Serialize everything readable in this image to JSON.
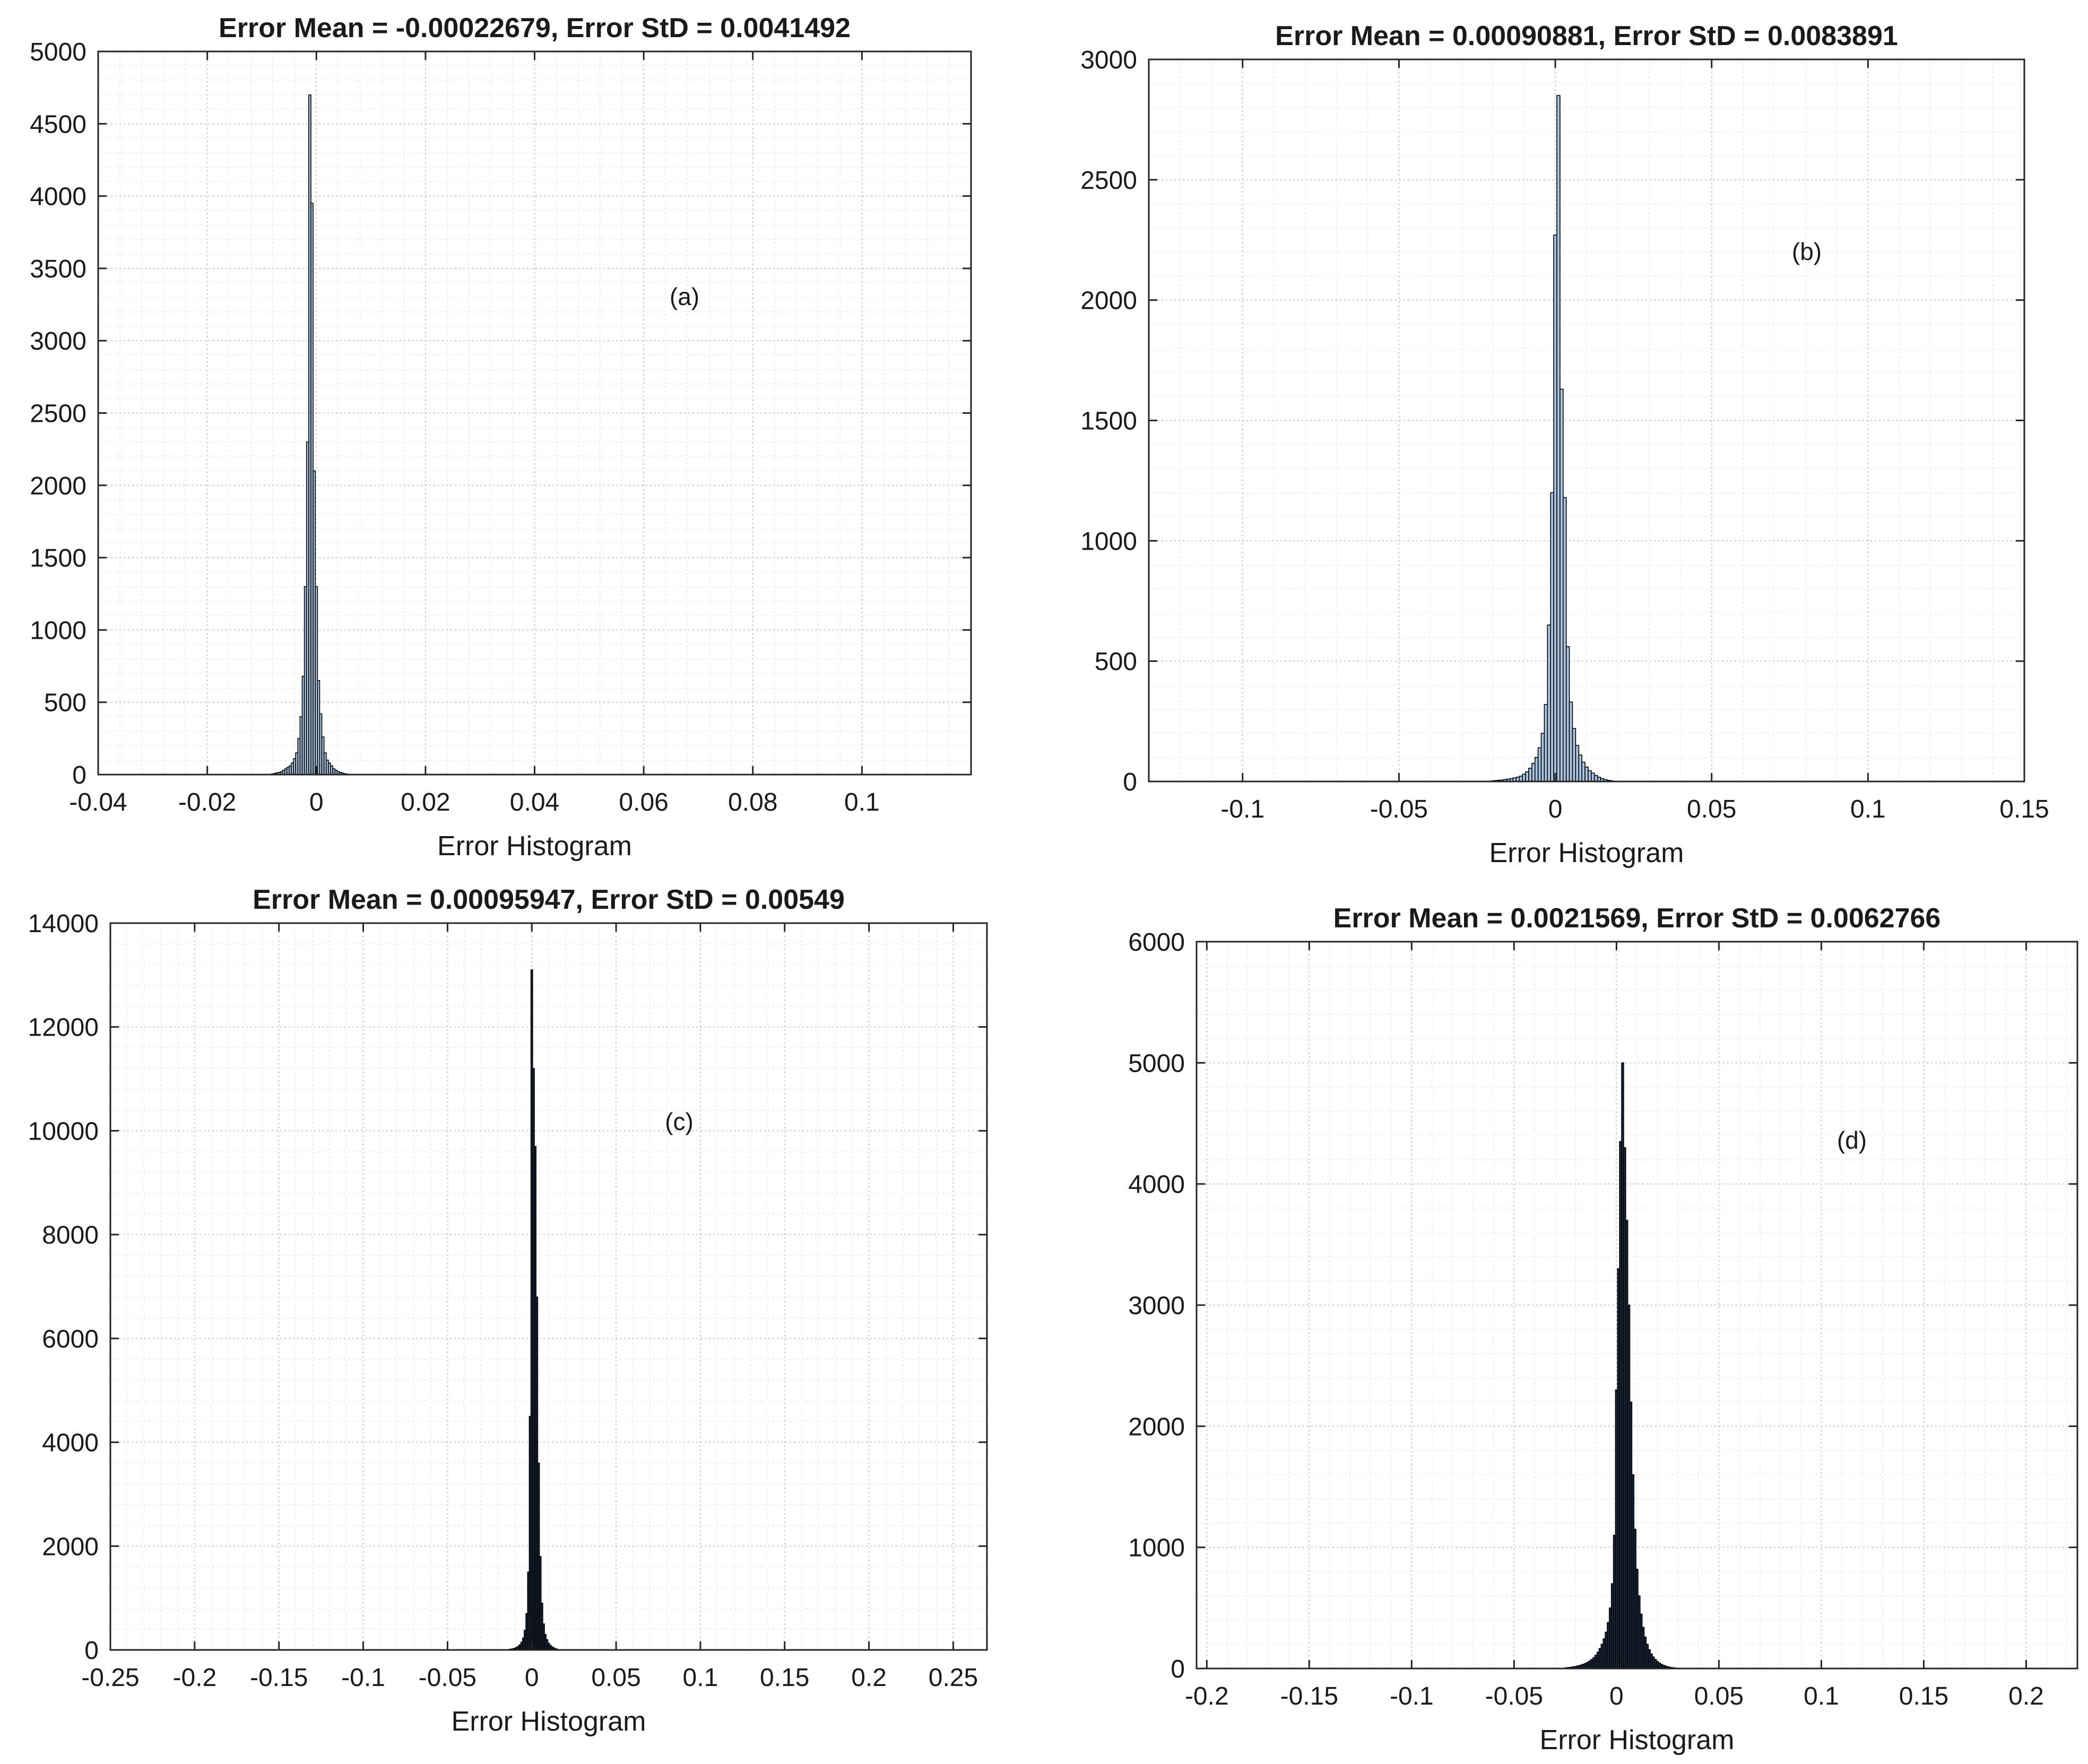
{
  "chart_data": [
    {
      "id": "a",
      "type": "bar",
      "title": "Error Mean = -0.00022679, Error StD = 0.0041492",
      "xlabel": "Error Histogram",
      "ylabel": "",
      "annotation": "(a)",
      "xlim": [
        -0.04,
        0.12
      ],
      "ylim": [
        0,
        5000
      ],
      "xticks": [
        -0.04,
        -0.02,
        0,
        0.02,
        0.04,
        0.06,
        0.08,
        0.1
      ],
      "xtick_labels": [
        "-0.04",
        "-0.02",
        "0",
        "0.02",
        "0.04",
        "0.06",
        "0.08",
        "0.1"
      ],
      "yticks": [
        0,
        500,
        1000,
        1500,
        2000,
        2500,
        3000,
        3500,
        4000,
        4500,
        5000
      ],
      "ytick_labels": [
        "0",
        "500",
        "1000",
        "1500",
        "2000",
        "2500",
        "3000",
        "3500",
        "4000",
        "4500",
        "5000"
      ],
      "grid": true,
      "bar_color": "#a9c4e0",
      "bar_edge": "#000000",
      "bin_width": 0.0004,
      "x": [
        -0.008,
        -0.0076,
        -0.0072,
        -0.0068,
        -0.0064,
        -0.006,
        -0.0056,
        -0.0052,
        -0.0048,
        -0.0044,
        -0.004,
        -0.0036,
        -0.0032,
        -0.0028,
        -0.0024,
        -0.002,
        -0.0016,
        -0.0012,
        -0.0008,
        -0.0004,
        0.0,
        0.0004,
        0.0008,
        0.0012,
        0.0016,
        0.002,
        0.0024,
        0.0028,
        0.0032,
        0.0036,
        0.004,
        0.0044,
        0.0048,
        0.0052,
        0.0056,
        0.006
      ],
      "values": [
        5,
        8,
        12,
        15,
        20,
        30,
        40,
        50,
        60,
        80,
        110,
        150,
        250,
        400,
        680,
        1300,
        2300,
        4700,
        3950,
        2100,
        1300,
        650,
        420,
        260,
        150,
        100,
        80,
        60,
        40,
        30,
        20,
        15,
        10,
        6,
        4,
        2
      ]
    },
    {
      "id": "b",
      "type": "bar",
      "title": "Error Mean = 0.00090881, Error StD = 0.0083891",
      "xlabel": "Error Histogram",
      "ylabel": "",
      "annotation": "(b)",
      "xlim": [
        -0.13,
        0.15
      ],
      "ylim": [
        0,
        3000
      ],
      "xticks": [
        -0.1,
        -0.05,
        0,
        0.05,
        0.1,
        0.15
      ],
      "xtick_labels": [
        "-0.1",
        "-0.05",
        "0",
        "0.05",
        "0.1",
        "0.15"
      ],
      "yticks": [
        0,
        500,
        1000,
        1500,
        2000,
        2500,
        3000
      ],
      "ytick_labels": [
        "0",
        "500",
        "1000",
        "1500",
        "2000",
        "2500",
        "3000"
      ],
      "grid": true,
      "bar_color": "#a9c4e0",
      "bar_edge": "#000000",
      "bin_width": 0.001,
      "x": [
        -0.02,
        -0.019,
        -0.018,
        -0.017,
        -0.016,
        -0.015,
        -0.014,
        -0.013,
        -0.012,
        -0.011,
        -0.01,
        -0.009,
        -0.008,
        -0.007,
        -0.006,
        -0.005,
        -0.004,
        -0.003,
        -0.002,
        -0.001,
        0.0,
        0.001,
        0.002,
        0.003,
        0.004,
        0.005,
        0.006,
        0.007,
        0.008,
        0.009,
        0.01,
        0.011,
        0.012,
        0.013,
        0.014,
        0.015,
        0.016,
        0.017,
        0.018
      ],
      "values": [
        3,
        4,
        5,
        6,
        8,
        10,
        12,
        15,
        18,
        22,
        30,
        40,
        55,
        75,
        100,
        140,
        200,
        320,
        650,
        1200,
        2270,
        2850,
        1630,
        1180,
        560,
        330,
        220,
        150,
        110,
        80,
        60,
        45,
        35,
        25,
        18,
        12,
        8,
        5,
        3
      ]
    },
    {
      "id": "c",
      "type": "bar",
      "title": "Error Mean = 0.00095947, Error StD = 0.00549",
      "xlabel": "Error Histogram",
      "ylabel": "",
      "annotation": "(c)",
      "xlim": [
        -0.25,
        0.27
      ],
      "ylim": [
        0,
        14000
      ],
      "xticks": [
        -0.25,
        -0.2,
        -0.15,
        -0.1,
        -0.05,
        0,
        0.05,
        0.1,
        0.15,
        0.2,
        0.25
      ],
      "xtick_labels": [
        "-0.25",
        "-0.2",
        "-0.15",
        "-0.1",
        "-0.05",
        "0",
        "0.05",
        "0.1",
        "0.15",
        "0.2",
        "0.25"
      ],
      "yticks": [
        0,
        2000,
        4000,
        6000,
        8000,
        10000,
        12000,
        14000
      ],
      "ytick_labels": [
        "0",
        "2000",
        "4000",
        "6000",
        "8000",
        "10000",
        "12000",
        "14000"
      ],
      "grid": true,
      "bar_color": "#1a2a40",
      "bar_edge": "#000000",
      "bin_width": 0.001,
      "x": [
        -0.015,
        -0.014,
        -0.013,
        -0.012,
        -0.011,
        -0.01,
        -0.009,
        -0.008,
        -0.007,
        -0.006,
        -0.005,
        -0.004,
        -0.003,
        -0.002,
        -0.001,
        0.0,
        0.001,
        0.002,
        0.003,
        0.004,
        0.005,
        0.006,
        0.007,
        0.008,
        0.009,
        0.01,
        0.011,
        0.012,
        0.013,
        0.014,
        0.015
      ],
      "values": [
        5,
        8,
        12,
        18,
        25,
        35,
        50,
        70,
        100,
        150,
        230,
        380,
        700,
        1500,
        4500,
        13100,
        11200,
        9700,
        6800,
        3600,
        1800,
        900,
        500,
        300,
        200,
        130,
        90,
        60,
        40,
        25,
        15
      ]
    },
    {
      "id": "d",
      "type": "bar",
      "title": "Error Mean = 0.0021569, Error StD = 0.0062766",
      "xlabel": "Error Histogram",
      "ylabel": "",
      "annotation": "(d)",
      "xlim": [
        -0.205,
        0.225
      ],
      "ylim": [
        0,
        6000
      ],
      "xticks": [
        -0.2,
        -0.15,
        -0.1,
        -0.05,
        0,
        0.05,
        0.1,
        0.15,
        0.2
      ],
      "xtick_labels": [
        "-0.2",
        "-0.15",
        "-0.1",
        "-0.05",
        "0",
        "0.05",
        "0.1",
        "0.15",
        "0.2"
      ],
      "yticks": [
        0,
        1000,
        2000,
        3000,
        4000,
        5000,
        6000
      ],
      "ytick_labels": [
        "0",
        "1000",
        "2000",
        "3000",
        "4000",
        "5000",
        "6000"
      ],
      "grid": true,
      "bar_color": "#1a2a40",
      "bar_edge": "#000000",
      "bin_width": 0.001,
      "x": [
        -0.025,
        -0.024,
        -0.023,
        -0.022,
        -0.021,
        -0.02,
        -0.019,
        -0.018,
        -0.017,
        -0.016,
        -0.015,
        -0.014,
        -0.013,
        -0.012,
        -0.011,
        -0.01,
        -0.009,
        -0.008,
        -0.007,
        -0.006,
        -0.005,
        -0.004,
        -0.003,
        -0.002,
        -0.001,
        0.0,
        0.001,
        0.002,
        0.003,
        0.004,
        0.005,
        0.006,
        0.007,
        0.008,
        0.009,
        0.01,
        0.011,
        0.012,
        0.013,
        0.014,
        0.015,
        0.016,
        0.017,
        0.018,
        0.019,
        0.02,
        0.021,
        0.022,
        0.023,
        0.024,
        0.025,
        0.026,
        0.027,
        0.028,
        0.029,
        0.03
      ],
      "values": [
        5,
        7,
        9,
        11,
        14,
        17,
        21,
        25,
        30,
        36,
        43,
        52,
        62,
        75,
        90,
        110,
        135,
        165,
        200,
        245,
        300,
        380,
        500,
        700,
        1100,
        2300,
        3300,
        4350,
        5000,
        4300,
        3700,
        3000,
        2200,
        1600,
        1150,
        820,
        600,
        450,
        340,
        260,
        200,
        155,
        120,
        95,
        75,
        58,
        45,
        35,
        27,
        20,
        15,
        11,
        8,
        6,
        4,
        3
      ]
    }
  ]
}
